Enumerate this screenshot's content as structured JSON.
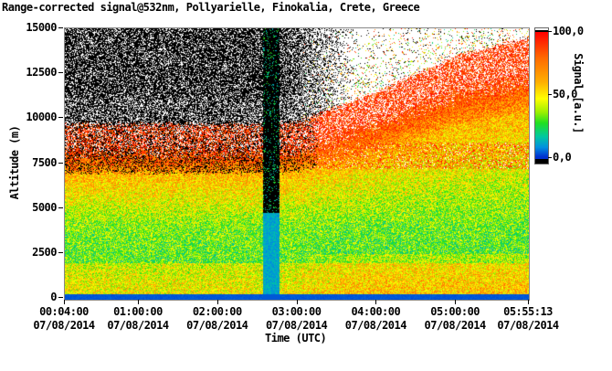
{
  "chart_data": {
    "type": "heatmap",
    "title": "Range-corrected signal@532nm, Pollyarielle, Finokalia, Crete, Greece",
    "xlabel": "Time (UTC)",
    "ylabel": "Altitude (m)",
    "x_range": [
      "00:04:00 07/08/2014",
      "05:55:13 07/08/2014"
    ],
    "x_ticks": [
      {
        "time": "00:04:00",
        "date": "07/08/2014"
      },
      {
        "time": "01:00:00",
        "date": "07/08/2014"
      },
      {
        "time": "02:00:00",
        "date": "07/08/2014"
      },
      {
        "time": "03:00:00",
        "date": "07/08/2014"
      },
      {
        "time": "04:00:00",
        "date": "07/08/2014"
      },
      {
        "time": "05:00:00",
        "date": "07/08/2014"
      },
      {
        "time": "05:55:13",
        "date": "07/08/2014"
      }
    ],
    "ylim": [
      0,
      15000
    ],
    "y_ticks": [
      "0",
      "2500",
      "5000",
      "7500",
      "10000",
      "12500",
      "15000"
    ],
    "colorbar": {
      "label": "Signal [a.u.]",
      "range": [
        0,
        100
      ],
      "ticks": [
        "100,0",
        "50,0",
        "0,0"
      ],
      "colormap": [
        "#000000",
        "#0030d0",
        "#0090e0",
        "#00c8a0",
        "#20e020",
        "#9cf000",
        "#ffff00",
        "#ffb000",
        "#ff6a00",
        "#ff0000",
        "#ffffff"
      ]
    },
    "features": {
      "cloud_top_m": [
        {
          "time": "00:04:00",
          "alt": 9700
        },
        {
          "time": "02:30:00",
          "alt": 9700
        },
        {
          "time": "03:00:00",
          "alt": 9800
        },
        {
          "time": "04:00:00",
          "alt": 11500
        },
        {
          "time": "05:00:00",
          "alt": 13500
        },
        {
          "time": "05:55:13",
          "alt": 14500
        }
      ],
      "data_gap": [
        "02:34:00",
        "02:46:00"
      ],
      "grid": false
    }
  }
}
